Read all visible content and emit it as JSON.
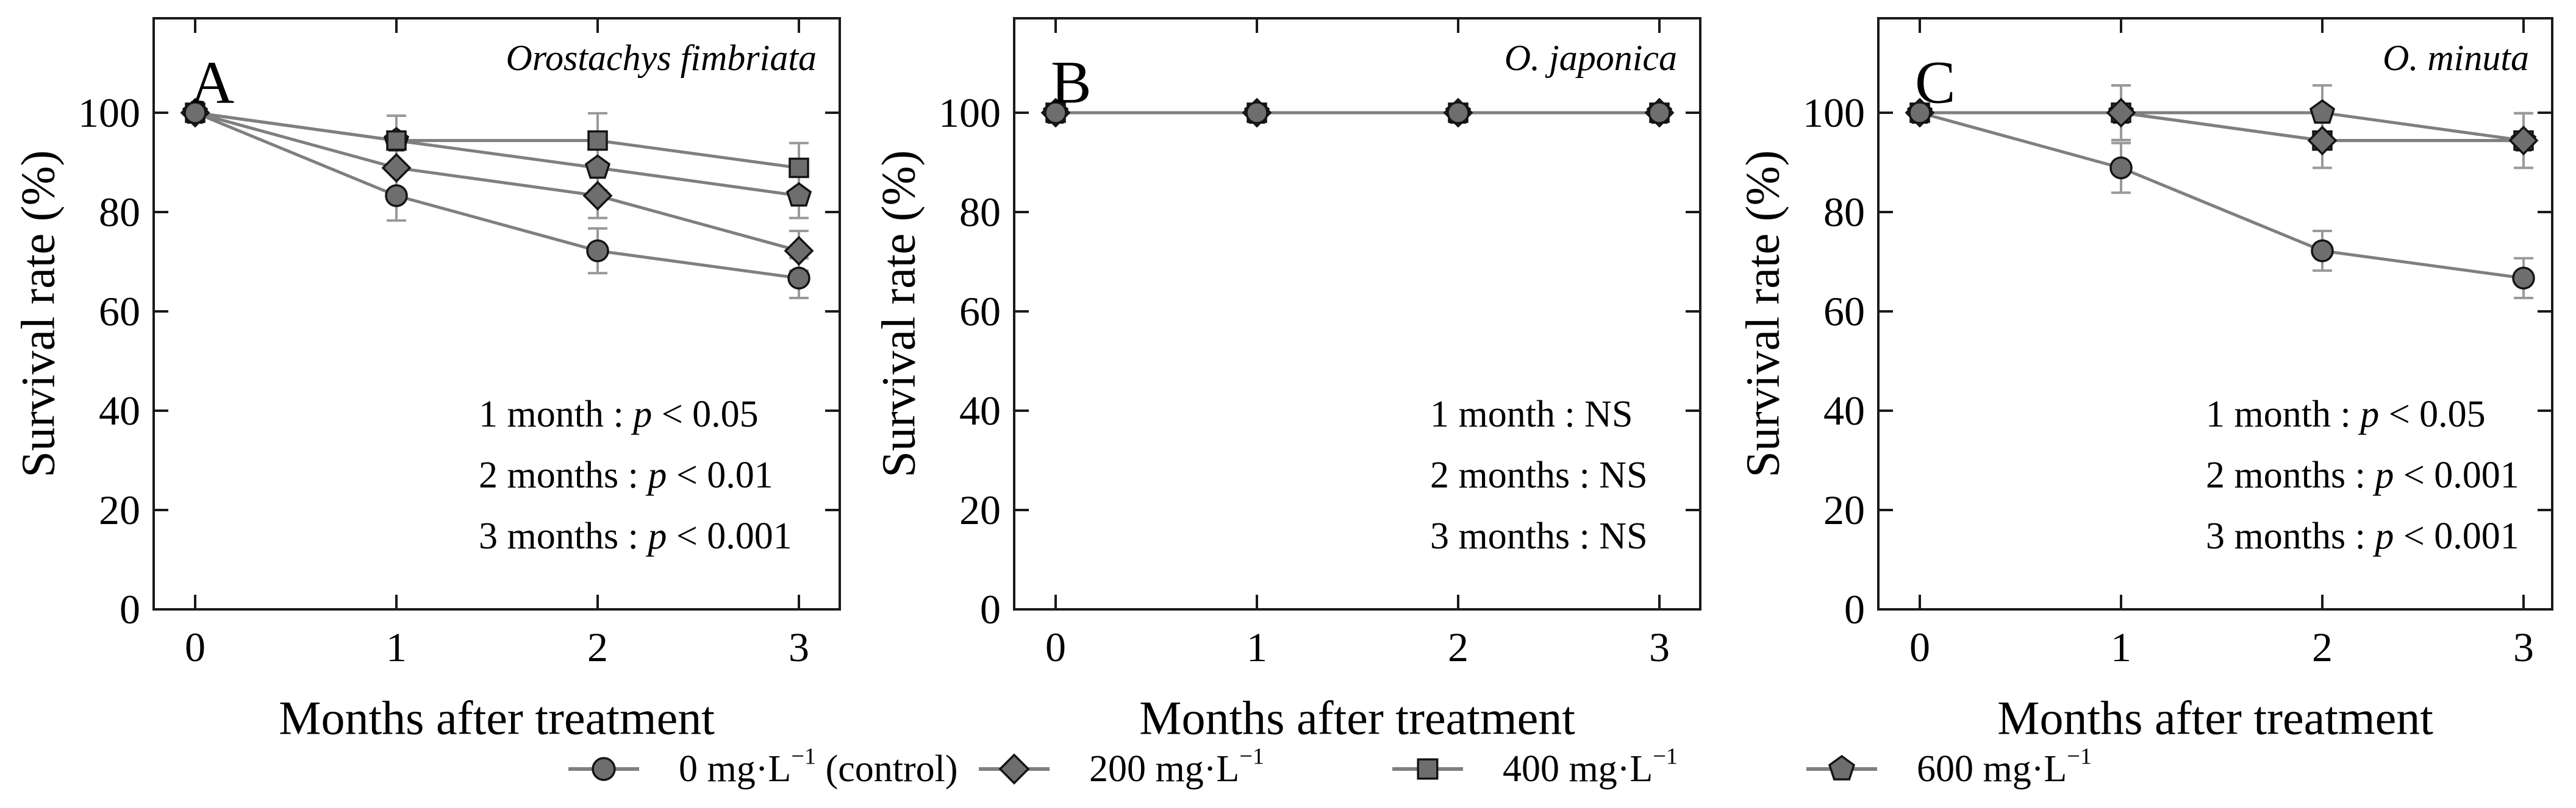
{
  "figure": {
    "background": "#ffffff",
    "text_color": "#000000",
    "line_color": "#7f7f7f",
    "marker_fill": "#6e6e6e",
    "marker_stroke": "#141414",
    "error_color": "#999999",
    "frame_color": "#1a1a1a"
  },
  "chart_data": [
    {
      "type": "line",
      "panel_label": "A",
      "title": "Orostachys fimbriata",
      "xlabel": "Months after treatment",
      "ylabel": "Survival rate (%)",
      "x": [
        0,
        1,
        2,
        3
      ],
      "xticks": [
        "0",
        "1",
        "2",
        "3"
      ],
      "yticks": [
        "0",
        "20",
        "40",
        "60",
        "80",
        "100"
      ],
      "ytick_values": [
        0,
        20,
        40,
        60,
        80,
        100
      ],
      "ylim": [
        0,
        119
      ],
      "grid": false,
      "series": [
        {
          "name": "0 mg·L⁻¹ (control)",
          "marker": "circle",
          "values": [
            100,
            83.3,
            72.2,
            66.7
          ],
          "errors": [
            0,
            5,
            4.5,
            4
          ]
        },
        {
          "name": "200 mg·L⁻¹",
          "marker": "diamond",
          "values": [
            100,
            88.9,
            83.3,
            72.2
          ],
          "errors": [
            0,
            4.5,
            4.5,
            4
          ]
        },
        {
          "name": "400 mg·L⁻¹",
          "marker": "square",
          "values": [
            100,
            94.4,
            94.4,
            88.9
          ],
          "errors": [
            0,
            5,
            5.5,
            5
          ]
        },
        {
          "name": "600 mg·L⁻¹",
          "marker": "pentagon",
          "values": [
            100,
            94.4,
            88.9,
            83.3
          ],
          "errors": [
            0,
            5,
            4.5,
            4.5
          ]
        }
      ],
      "annotations": [
        [
          {
            "t": "1 month : "
          },
          {
            "t": "p",
            "i": true
          },
          {
            "t": " < 0.05"
          }
        ],
        [
          {
            "t": "2 months : "
          },
          {
            "t": "p",
            "i": true
          },
          {
            "t": " < 0.01"
          }
        ],
        [
          {
            "t": "3 months : "
          },
          {
            "t": "p",
            "i": true
          },
          {
            "t": " < 0.001"
          }
        ]
      ]
    },
    {
      "type": "line",
      "panel_label": "B",
      "title": "O. japonica",
      "xlabel": "Months after treatment",
      "ylabel": "Survival rate (%)",
      "x": [
        0,
        1,
        2,
        3
      ],
      "xticks": [
        "0",
        "1",
        "2",
        "3"
      ],
      "yticks": [
        "0",
        "20",
        "40",
        "60",
        "80",
        "100"
      ],
      "ytick_values": [
        0,
        20,
        40,
        60,
        80,
        100
      ],
      "ylim": [
        0,
        119
      ],
      "grid": false,
      "series": [
        {
          "name": "0 mg·L⁻¹ (control)",
          "marker": "circle",
          "values": [
            100,
            100,
            100,
            100
          ],
          "errors": [
            0,
            0,
            0,
            0
          ]
        },
        {
          "name": "200 mg·L⁻¹",
          "marker": "diamond",
          "values": [
            100,
            100,
            100,
            100
          ],
          "errors": [
            0,
            0,
            0,
            0
          ]
        },
        {
          "name": "400 mg·L⁻¹",
          "marker": "square",
          "values": [
            100,
            100,
            100,
            100
          ],
          "errors": [
            0,
            0,
            0,
            0
          ]
        },
        {
          "name": "600 mg·L⁻¹",
          "marker": "pentagon",
          "values": [
            100,
            100,
            100,
            100
          ],
          "errors": [
            0,
            0,
            0,
            0
          ]
        }
      ],
      "annotations": [
        [
          {
            "t": "1 month : NS"
          }
        ],
        [
          {
            "t": "2 months : NS"
          }
        ],
        [
          {
            "t": "3 months : NS"
          }
        ]
      ]
    },
    {
      "type": "line",
      "panel_label": "C",
      "title": "O. minuta",
      "xlabel": "Months after treatment",
      "ylabel": "Survival rate (%)",
      "x": [
        0,
        1,
        2,
        3
      ],
      "xticks": [
        "0",
        "1",
        "2",
        "3"
      ],
      "yticks": [
        "0",
        "20",
        "40",
        "60",
        "80",
        "100"
      ],
      "ytick_values": [
        0,
        20,
        40,
        60,
        80,
        100
      ],
      "ylim": [
        0,
        119
      ],
      "grid": false,
      "series": [
        {
          "name": "0 mg·L⁻¹ (control)",
          "marker": "circle",
          "values": [
            100,
            88.9,
            72.2,
            66.7
          ],
          "errors": [
            0,
            5,
            4,
            4
          ]
        },
        {
          "name": "200 mg·L⁻¹",
          "marker": "diamond",
          "values": [
            100,
            100,
            94.4,
            94.4
          ],
          "errors": [
            0,
            5.5,
            5.5,
            5.5
          ]
        },
        {
          "name": "400 mg·L⁻¹",
          "marker": "square",
          "values": [
            100,
            100,
            94.4,
            94.4
          ],
          "errors": [
            0,
            5.5,
            5.5,
            5.5
          ]
        },
        {
          "name": "600 mg·L⁻¹",
          "marker": "pentagon",
          "values": [
            100,
            100,
            100,
            94.4
          ],
          "errors": [
            0,
            5.5,
            5.5,
            5.5
          ]
        }
      ],
      "annotations": [
        [
          {
            "t": "1 month : "
          },
          {
            "t": "p",
            "i": true
          },
          {
            "t": " < 0.05"
          }
        ],
        [
          {
            "t": "2 months : "
          },
          {
            "t": "p",
            "i": true
          },
          {
            "t": " < 0.001"
          }
        ],
        [
          {
            "t": "3 months : "
          },
          {
            "t": "p",
            "i": true
          },
          {
            "t": " < 0.001"
          }
        ]
      ]
    }
  ],
  "legend": {
    "position": "bottom",
    "items": [
      {
        "marker": "circle",
        "label": "0 mg·L⁻¹ (control)"
      },
      {
        "marker": "diamond",
        "label": "200 mg·L⁻¹"
      },
      {
        "marker": "square",
        "label": "400 mg·L⁻¹"
      },
      {
        "marker": "pentagon",
        "label": "600 mg·L⁻¹"
      }
    ]
  }
}
